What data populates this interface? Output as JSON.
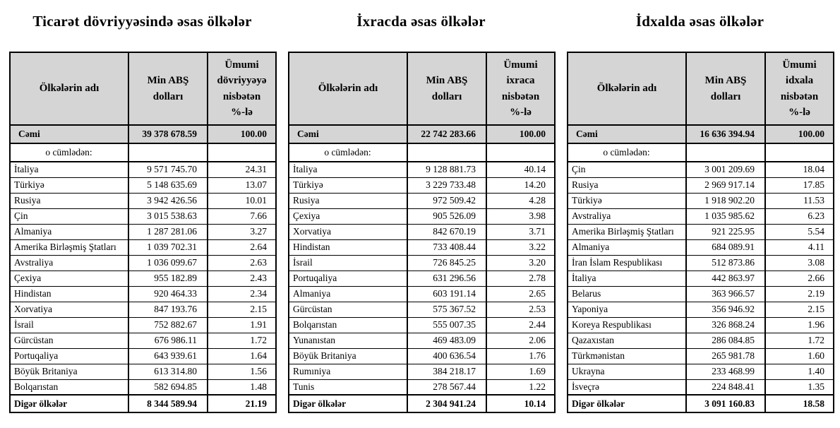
{
  "colors": {
    "page_bg": "#ffffff",
    "header_bg": "#d5d5d5",
    "border": "#000000",
    "text": "#000000"
  },
  "tables": [
    {
      "title": "Ticarət dövriyyəsində əsas ölkələr",
      "columns": [
        "Ölkələrin adı",
        "Min ABŞ dolları",
        "Ümumi dövriyyəyə nisbətən %-lə"
      ],
      "total": {
        "label": "Cəmi",
        "value": "39 378 678.59",
        "percent": "100.00"
      },
      "subheader_label": "o cümlədən:",
      "rows": [
        [
          "İtaliya",
          "9 571 745.70",
          "24.31"
        ],
        [
          "Türkiyə",
          "5 148 635.69",
          "13.07"
        ],
        [
          "Rusiya",
          "3 942 426.56",
          "10.01"
        ],
        [
          "Çin",
          "3 015 538.63",
          "7.66"
        ],
        [
          "Almaniya",
          "1 287 281.06",
          "3.27"
        ],
        [
          "Amerika Birləşmiş Ştatları",
          "1 039 702.31",
          "2.64"
        ],
        [
          "Avstraliya",
          "1 036 099.67",
          "2.63"
        ],
        [
          "Çexiya",
          "955 182.89",
          "2.43"
        ],
        [
          "Hindistan",
          "920 464.33",
          "2.34"
        ],
        [
          "Xorvatiya",
          "847 193.76",
          "2.15"
        ],
        [
          "İsrail",
          "752 882.67",
          "1.91"
        ],
        [
          "Gürcüstan",
          "676 986.11",
          "1.72"
        ],
        [
          "Portuqaliya",
          "643 939.61",
          "1.64"
        ],
        [
          "Böyük Britaniya",
          "613 314.80",
          "1.56"
        ],
        [
          "Bolqarıstan",
          "582 694.85",
          "1.48"
        ]
      ],
      "other": {
        "label": "Digər ölkələr",
        "value": "8 344 589.94",
        "percent": "21.19"
      }
    },
    {
      "title": "İxracda əsas ölkələr",
      "columns": [
        "Ölkələrin adı",
        "Min ABŞ dolları",
        "Ümumi ixraca nisbətən %-lə"
      ],
      "total": {
        "label": "Cəmi",
        "value": "22 742 283.66",
        "percent": "100.00"
      },
      "subheader_label": "o cümlədən:",
      "rows": [
        [
          "İtaliya",
          "9 128 881.73",
          "40.14"
        ],
        [
          "Türkiyə",
          "3 229 733.48",
          "14.20"
        ],
        [
          "Rusiya",
          "972 509.42",
          "4.28"
        ],
        [
          "Çexiya",
          "905 526.09",
          "3.98"
        ],
        [
          "Xorvatiya",
          "842 670.19",
          "3.71"
        ],
        [
          "Hindistan",
          "733 408.44",
          "3.22"
        ],
        [
          "İsrail",
          "726 845.25",
          "3.20"
        ],
        [
          "Portuqaliya",
          "631 296.56",
          "2.78"
        ],
        [
          "Almaniya",
          "603 191.14",
          "2.65"
        ],
        [
          "Gürcüstan",
          "575 367.52",
          "2.53"
        ],
        [
          "Bolqarıstan",
          "555 007.35",
          "2.44"
        ],
        [
          "Yunanıstan",
          "469 483.09",
          "2.06"
        ],
        [
          "Böyük Britaniya",
          "400 636.54",
          "1.76"
        ],
        [
          "Rumıniya",
          "384 218.17",
          "1.69"
        ],
        [
          "Tunis",
          "278 567.44",
          "1.22"
        ]
      ],
      "other": {
        "label": "Digər ölkələr",
        "value": "2 304 941.24",
        "percent": "10.14"
      }
    },
    {
      "title": "İdxalda əsas ölkələr",
      "columns": [
        "Ölkələrin adı",
        "Min ABŞ dolları",
        "Ümumi idxala nisbətən %-lə"
      ],
      "total": {
        "label": "Cəmi",
        "value": "16 636 394.94",
        "percent": "100.00"
      },
      "subheader_label": "o cümlədən:",
      "rows": [
        [
          "Çin",
          "3 001 209.69",
          "18.04"
        ],
        [
          "Rusiya",
          "2 969 917.14",
          "17.85"
        ],
        [
          "Türkiyə",
          "1 918 902.20",
          "11.53"
        ],
        [
          "Avstraliya",
          "1 035 985.62",
          "6.23"
        ],
        [
          "Amerika Birləşmiş Ştatları",
          "921 225.95",
          "5.54"
        ],
        [
          "Almaniya",
          "684 089.91",
          "4.11"
        ],
        [
          "İran İslam Respublikası",
          "512 873.86",
          "3.08"
        ],
        [
          "İtaliya",
          "442 863.97",
          "2.66"
        ],
        [
          "Belarus",
          "363 966.57",
          "2.19"
        ],
        [
          "Yaponiya",
          "356 946.92",
          "2.15"
        ],
        [
          "Koreya Respublikası",
          "326 868.24",
          "1.96"
        ],
        [
          "Qazaxıstan",
          "286 084.85",
          "1.72"
        ],
        [
          "Türkmənistan",
          "265 981.78",
          "1.60"
        ],
        [
          "Ukrayna",
          "233 468.99",
          "1.40"
        ],
        [
          "İsveçrə",
          "224 848.41",
          "1.35"
        ]
      ],
      "other": {
        "label": "Digər ölkələr",
        "value": "3 091 160.83",
        "percent": "18.58"
      }
    }
  ]
}
